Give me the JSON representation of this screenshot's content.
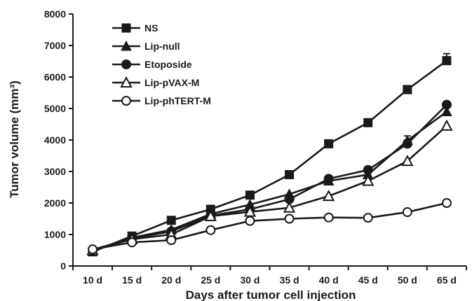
{
  "chart_data": {
    "type": "line",
    "xlabel": "Days after tumor cell injection",
    "ylabel": "Tumor volume (mm³)",
    "categories": [
      "10 d",
      "15 d",
      "20 d",
      "25 d",
      "30 d",
      "35 d",
      "40 d",
      "45 d",
      "50 d",
      "65 d"
    ],
    "ylim": [
      0,
      8000
    ],
    "yticks": [
      0,
      1000,
      2000,
      3000,
      4000,
      5000,
      6000,
      7000,
      8000
    ],
    "grid": false,
    "legend_position": "top-left",
    "series": [
      {
        "name": "NS",
        "marker": "filled-square",
        "values": [
          450,
          950,
          1450,
          1800,
          2250,
          2900,
          3880,
          4550,
          5600,
          6520
        ],
        "errors": [
          0,
          0,
          0,
          0,
          0,
          0,
          0,
          0,
          120,
          220
        ]
      },
      {
        "name": "Lip-null",
        "marker": "filled-triangle",
        "values": [
          480,
          900,
          1150,
          1650,
          1950,
          2280,
          2700,
          2900,
          3980,
          4900
        ],
        "errors": [
          0,
          0,
          0,
          0,
          0,
          0,
          0,
          0,
          150,
          0
        ]
      },
      {
        "name": "Etoposide",
        "marker": "filled-circle",
        "values": [
          520,
          870,
          1100,
          1600,
          1800,
          2120,
          2770,
          3050,
          3880,
          5120
        ],
        "errors": [
          0,
          0,
          0,
          0,
          0,
          0,
          0,
          0,
          120,
          100
        ]
      },
      {
        "name": "Lip-pVAX-M",
        "marker": "open-triangle",
        "values": [
          500,
          850,
          1000,
          1580,
          1720,
          1850,
          2220,
          2700,
          3330,
          4450
        ],
        "errors": [
          0,
          0,
          0,
          0,
          0,
          0,
          0,
          0,
          0,
          0
        ]
      },
      {
        "name": "Lip-phTERT-M",
        "marker": "open-circle",
        "values": [
          530,
          750,
          820,
          1140,
          1430,
          1500,
          1540,
          1530,
          1710,
          2000
        ],
        "errors": [
          0,
          0,
          0,
          0,
          0,
          0,
          0,
          0,
          0,
          0
        ]
      }
    ]
  }
}
